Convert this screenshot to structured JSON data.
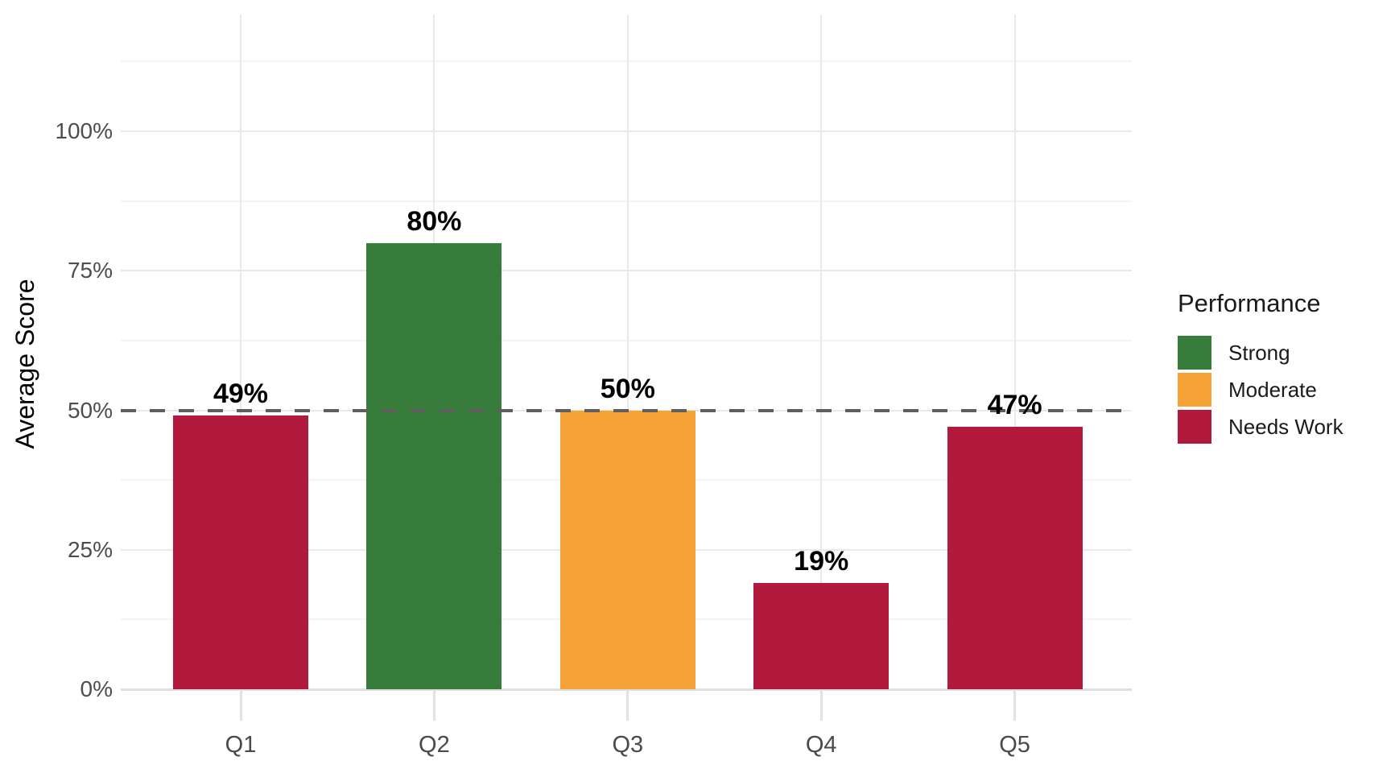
{
  "chart_data": {
    "type": "bar",
    "title": "",
    "ylabel": "Average Score",
    "xlabel": "",
    "categories": [
      "Q1",
      "Q2",
      "Q3",
      "Q4",
      "Q5"
    ],
    "values": [
      49,
      80,
      50,
      19,
      47
    ],
    "value_labels": [
      "49%",
      "80%",
      "50%",
      "19%",
      "47%"
    ],
    "bar_levels": [
      "Needs Work",
      "Strong",
      "Moderate",
      "Needs Work",
      "Needs Work"
    ],
    "y_ticks": [
      {
        "value": 0,
        "label": "0%"
      },
      {
        "value": 25,
        "label": "25%"
      },
      {
        "value": 50,
        "label": "50%"
      },
      {
        "value": 75,
        "label": "75%"
      },
      {
        "value": 100,
        "label": "100%"
      }
    ],
    "ylim": [
      0,
      121
    ],
    "grid": {
      "horizontal_major": [
        0,
        25,
        50,
        75,
        100
      ],
      "horizontal_minor": [
        12.5,
        37.5,
        62.5,
        87.5,
        112.5
      ],
      "vertical_major": "category centers"
    },
    "reference_line": {
      "value": 50,
      "style": "dashed",
      "color": "#5E5E5E"
    },
    "legend": {
      "title": "Performance",
      "position": "right",
      "entries": [
        {
          "label": "Strong",
          "color": "#377C3A"
        },
        {
          "label": "Moderate",
          "color": "#F5A236"
        },
        {
          "label": "Needs Work",
          "color": "#B11A3D"
        }
      ]
    }
  }
}
